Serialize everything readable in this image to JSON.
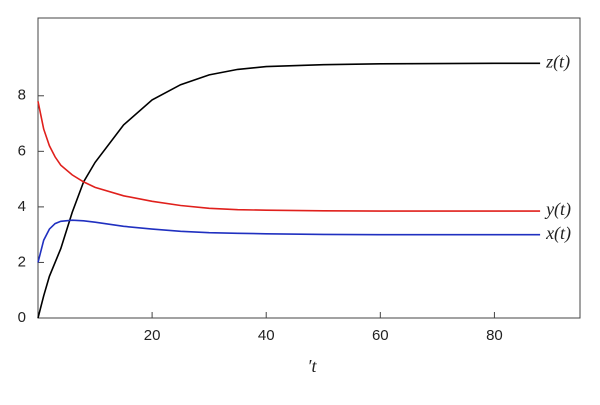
{
  "chart_data": {
    "type": "line",
    "x_label": "′t",
    "x": [
      0,
      1,
      2,
      3,
      4,
      6,
      8,
      10,
      15,
      20,
      25,
      30,
      35,
      40,
      50,
      60,
      70,
      80,
      88
    ],
    "series": [
      {
        "name": "z(t)",
        "color": "#000000",
        "values": [
          0,
          0.8,
          1.5,
          2.0,
          2.5,
          3.8,
          4.9,
          5.6,
          6.95,
          7.85,
          8.4,
          8.75,
          8.95,
          9.05,
          9.12,
          9.15,
          9.16,
          9.17,
          9.17
        ]
      },
      {
        "name": "y(t)",
        "color": "#e0201c",
        "values": [
          7.8,
          6.8,
          6.2,
          5.8,
          5.5,
          5.15,
          4.9,
          4.7,
          4.4,
          4.2,
          4.05,
          3.95,
          3.9,
          3.88,
          3.86,
          3.85,
          3.85,
          3.85,
          3.85
        ]
      },
      {
        "name": "x(t)",
        "color": "#2030c0",
        "values": [
          2.0,
          2.8,
          3.2,
          3.4,
          3.48,
          3.52,
          3.5,
          3.45,
          3.3,
          3.2,
          3.12,
          3.07,
          3.05,
          3.03,
          3.01,
          3.0,
          3.0,
          3.0,
          3.0
        ]
      }
    ],
    "xlim": [
      0,
      95
    ],
    "ylim": [
      0,
      10.8
    ],
    "xticks": [
      20,
      40,
      60,
      80
    ],
    "yticks": [
      0,
      2,
      4,
      6,
      8
    ]
  }
}
